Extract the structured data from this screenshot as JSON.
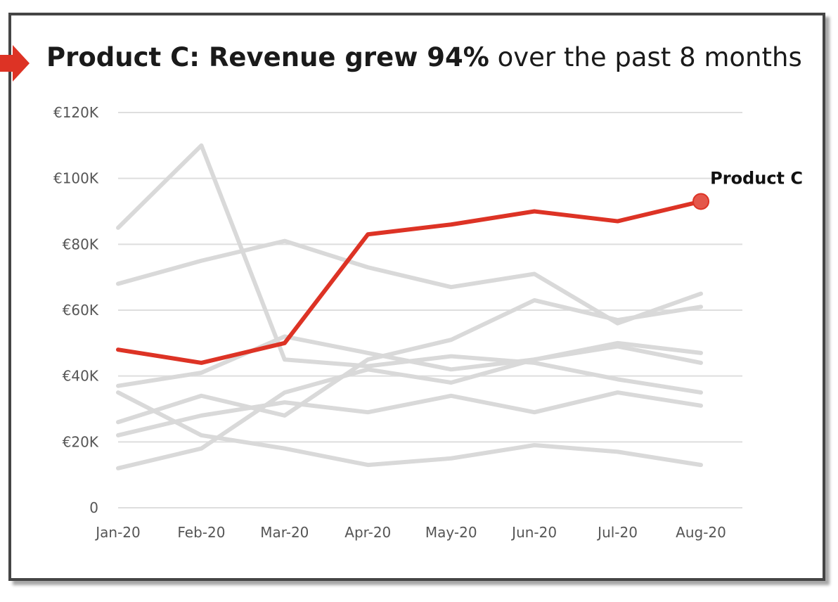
{
  "title": {
    "bold": "Product C: Revenue grew 94%",
    "rest": " over the past 8 months"
  },
  "colors": {
    "highlight": "#dd3325",
    "marker": "#e4574b",
    "context": "#d9d9d9",
    "grid": "#dedede",
    "frame": "#454545",
    "arrow": "#dd3325"
  },
  "chart_data": {
    "type": "line",
    "x": [
      "Jan-20",
      "Feb-20",
      "Mar-20",
      "Apr-20",
      "May-20",
      "Jun-20",
      "Jul-20",
      "Aug-20"
    ],
    "yticks": [
      "0",
      "€20K",
      "€40K",
      "€60K",
      "€80K",
      "€100K",
      "€120K"
    ],
    "ylim": [
      0,
      120000
    ],
    "grid": true,
    "highlight_label": "Product C",
    "series": [
      {
        "values": [
          85000,
          110000,
          45000,
          43000,
          46000,
          44000,
          39000,
          35000
        ],
        "highlight": false
      },
      {
        "values": [
          68000,
          75000,
          81000,
          73000,
          67000,
          71000,
          56000,
          65000
        ],
        "highlight": false
      },
      {
        "values": [
          37000,
          41000,
          52000,
          47000,
          42000,
          45000,
          50000,
          47000
        ],
        "highlight": false
      },
      {
        "values": [
          26000,
          34000,
          28000,
          45000,
          51000,
          63000,
          57000,
          61000
        ],
        "highlight": false
      },
      {
        "values": [
          22000,
          28000,
          32000,
          29000,
          34000,
          29000,
          35000,
          31000
        ],
        "highlight": false
      },
      {
        "values": [
          12000,
          18000,
          35000,
          42000,
          38000,
          45000,
          49000,
          44000
        ],
        "highlight": false
      },
      {
        "values": [
          35000,
          22000,
          18000,
          13000,
          15000,
          19000,
          17000,
          13000
        ],
        "highlight": false
      },
      {
        "name": "Product C",
        "values": [
          48000,
          44000,
          50000,
          83000,
          86000,
          90000,
          87000,
          93000
        ],
        "highlight": true
      }
    ]
  }
}
